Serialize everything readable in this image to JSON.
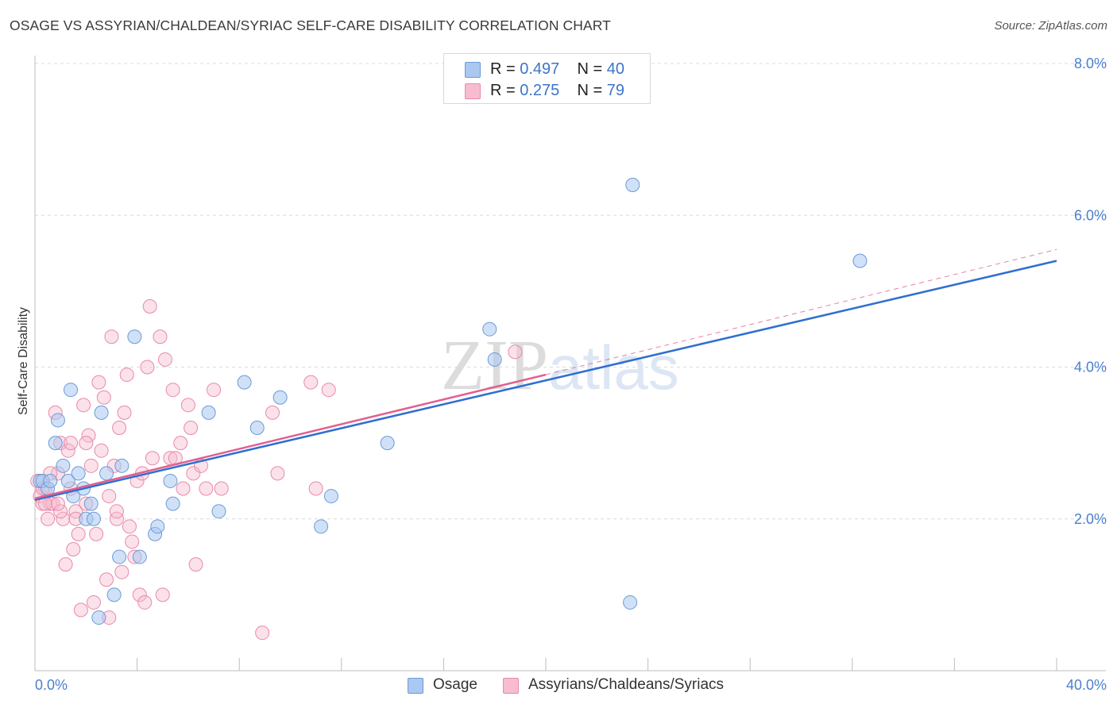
{
  "header": {
    "title": "OSAGE VS ASSYRIAN/CHALDEAN/SYRIAC SELF-CARE DISABILITY CORRELATION CHART",
    "source": "Source: ZipAtlas.com"
  },
  "legend": {
    "rows": [
      {
        "r_label": "R =",
        "r_value": "0.497",
        "n_label": "N =",
        "n_value": "40"
      },
      {
        "r_label": "R =",
        "r_value": "0.275",
        "n_label": "N =",
        "n_value": "79"
      }
    ]
  },
  "bottom_legend": {
    "series_a": "Osage",
    "series_b": "Assyrians/Chaldeans/Syriacs"
  },
  "watermark": "ZIPatlas",
  "colors": {
    "osage_fill": "#aac8f0",
    "osage_stroke": "#6b9ad8",
    "osage_line": "#2f6fd0",
    "assyr_fill": "#f7bcd0",
    "assyr_stroke": "#e88aa8",
    "assyr_line": "#e06090",
    "tick": "#4a7fd0",
    "grid": "#dcdcdc"
  },
  "chart_data": {
    "type": "scatter",
    "ylabel": "Self-Care Disability",
    "xlabel": "",
    "xlim": [
      0,
      40
    ],
    "ylim": [
      0,
      8
    ],
    "x_tick_labels": [
      "0.0%",
      "40.0%"
    ],
    "y_tick_labels": [
      "2.0%",
      "4.0%",
      "6.0%",
      "8.0%"
    ],
    "y_ticks": [
      2,
      4,
      6,
      8
    ],
    "grid": "horizontal dashed",
    "legend_position": "top-center",
    "series": [
      {
        "name": "Osage",
        "color": "#aac8f0",
        "trend": {
          "x": [
            0,
            40
          ],
          "y": [
            2.25,
            5.4
          ]
        },
        "points": [
          [
            0.2,
            2.5
          ],
          [
            0.3,
            2.5
          ],
          [
            0.5,
            2.4
          ],
          [
            0.6,
            2.5
          ],
          [
            0.8,
            3.0
          ],
          [
            0.9,
            3.3
          ],
          [
            1.1,
            2.7
          ],
          [
            1.3,
            2.5
          ],
          [
            1.4,
            3.7
          ],
          [
            1.5,
            2.3
          ],
          [
            1.7,
            2.6
          ],
          [
            1.9,
            2.4
          ],
          [
            2.0,
            2.0
          ],
          [
            2.2,
            2.2
          ],
          [
            2.3,
            2.0
          ],
          [
            2.5,
            0.7
          ],
          [
            2.6,
            3.4
          ],
          [
            2.8,
            2.6
          ],
          [
            3.1,
            1.0
          ],
          [
            3.3,
            1.5
          ],
          [
            3.4,
            2.7
          ],
          [
            3.9,
            4.4
          ],
          [
            4.1,
            1.5
          ],
          [
            4.7,
            1.8
          ],
          [
            4.8,
            1.9
          ],
          [
            5.3,
            2.5
          ],
          [
            5.4,
            2.2
          ],
          [
            6.8,
            3.4
          ],
          [
            7.2,
            2.1
          ],
          [
            8.2,
            3.8
          ],
          [
            8.7,
            3.2
          ],
          [
            9.6,
            3.6
          ],
          [
            11.2,
            1.9
          ],
          [
            11.6,
            2.3
          ],
          [
            13.8,
            3.0
          ],
          [
            17.8,
            4.5
          ],
          [
            18.0,
            4.1
          ],
          [
            23.3,
            0.9
          ],
          [
            23.4,
            6.4
          ],
          [
            32.3,
            5.4
          ]
        ]
      },
      {
        "name": "Assyrians/Chaldeans/Syriacs",
        "color": "#f7bcd0",
        "trend": {
          "x": [
            0,
            20
          ],
          "y": [
            2.27,
            3.9
          ]
        },
        "trend_dashed": {
          "x": [
            20,
            40
          ],
          "y": [
            3.9,
            5.55
          ]
        },
        "points": [
          [
            0.1,
            2.5
          ],
          [
            0.2,
            2.3
          ],
          [
            0.3,
            2.2
          ],
          [
            0.4,
            2.4
          ],
          [
            0.5,
            2.0
          ],
          [
            0.6,
            2.2
          ],
          [
            0.7,
            2.2
          ],
          [
            0.8,
            3.4
          ],
          [
            0.9,
            2.6
          ],
          [
            1.0,
            3.0
          ],
          [
            1.1,
            2.0
          ],
          [
            1.2,
            1.4
          ],
          [
            1.3,
            2.9
          ],
          [
            1.4,
            3.0
          ],
          [
            1.5,
            1.6
          ],
          [
            1.6,
            2.1
          ],
          [
            1.7,
            1.8
          ],
          [
            1.8,
            0.8
          ],
          [
            1.9,
            3.5
          ],
          [
            2.0,
            2.2
          ],
          [
            2.1,
            3.1
          ],
          [
            2.2,
            2.7
          ],
          [
            2.3,
            0.9
          ],
          [
            2.4,
            1.8
          ],
          [
            2.5,
            3.8
          ],
          [
            2.6,
            2.9
          ],
          [
            2.7,
            3.6
          ],
          [
            2.8,
            1.2
          ],
          [
            2.9,
            0.7
          ],
          [
            3.0,
            4.4
          ],
          [
            3.1,
            2.7
          ],
          [
            3.2,
            2.0
          ],
          [
            3.3,
            3.2
          ],
          [
            3.4,
            1.3
          ],
          [
            3.5,
            3.4
          ],
          [
            3.6,
            3.9
          ],
          [
            3.7,
            1.9
          ],
          [
            3.8,
            1.7
          ],
          [
            3.9,
            1.5
          ],
          [
            4.0,
            2.5
          ],
          [
            4.1,
            1.0
          ],
          [
            4.3,
            0.9
          ],
          [
            4.4,
            4.0
          ],
          [
            4.5,
            4.8
          ],
          [
            4.6,
            2.8
          ],
          [
            4.9,
            4.4
          ],
          [
            5.0,
            1.0
          ],
          [
            5.1,
            4.1
          ],
          [
            5.3,
            2.8
          ],
          [
            5.4,
            3.7
          ],
          [
            5.5,
            2.8
          ],
          [
            5.7,
            3.0
          ],
          [
            5.8,
            2.4
          ],
          [
            6.0,
            3.5
          ],
          [
            6.1,
            3.2
          ],
          [
            6.2,
            2.6
          ],
          [
            6.3,
            1.4
          ],
          [
            6.5,
            2.7
          ],
          [
            6.7,
            2.4
          ],
          [
            7.0,
            3.7
          ],
          [
            7.3,
            2.4
          ],
          [
            8.9,
            0.5
          ],
          [
            9.3,
            3.4
          ],
          [
            9.5,
            2.6
          ],
          [
            10.8,
            3.8
          ],
          [
            11.0,
            2.4
          ],
          [
            11.5,
            3.7
          ],
          [
            18.8,
            4.2
          ],
          [
            0.6,
            2.6
          ],
          [
            1.0,
            2.1
          ],
          [
            1.4,
            2.4
          ],
          [
            0.3,
            2.4
          ],
          [
            0.4,
            2.2
          ],
          [
            0.9,
            2.2
          ],
          [
            1.6,
            2.0
          ],
          [
            2.0,
            3.0
          ],
          [
            2.9,
            2.3
          ],
          [
            3.2,
            2.1
          ],
          [
            4.2,
            2.6
          ]
        ]
      }
    ]
  }
}
